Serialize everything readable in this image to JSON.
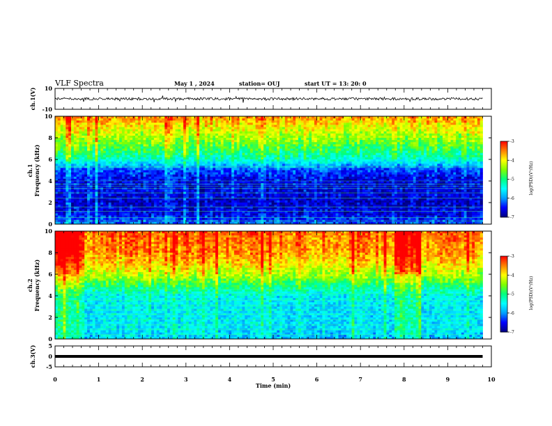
{
  "header": {
    "title": "VLF Spectra",
    "date": "May 1 , 2024",
    "station": "station= OUJ",
    "start": "start UT = 13: 20: 0"
  },
  "colors": {
    "scale": [
      "#000080",
      "#0000ff",
      "#00a0ff",
      "#00ffff",
      "#00ff80",
      "#80ff00",
      "#ffff00",
      "#ff8000",
      "#ff0000",
      "#ffffff"
    ]
  },
  "chart_data": [
    {
      "id": "ch1-waveform",
      "type": "line",
      "ylabel": "ch.1(V)",
      "ylim": [
        -10,
        10
      ],
      "yticks": [
        "10",
        "-10"
      ],
      "baseline": 0,
      "noise_amplitude": 1.2
    },
    {
      "id": "ch1-spectrogram",
      "type": "heatmap",
      "ylabel_top": "ch.1",
      "ylabel": "Frequency (kHz)",
      "ylim": [
        0,
        10
      ],
      "yticks": [
        "0",
        "2",
        "4",
        "6",
        "8",
        "10"
      ],
      "colorbar": {
        "label": "log(PSD)(V²/Hz)",
        "range": [
          -7,
          -3
        ],
        "ticks": [
          "-3",
          "-4",
          "-5",
          "-6",
          "-7"
        ]
      },
      "profile": [
        {
          "f": 0,
          "v": -6.2
        },
        {
          "f": 1,
          "v": -6.6
        },
        {
          "f": 2,
          "v": -6.7
        },
        {
          "f": 3,
          "v": -6.6
        },
        {
          "f": 4,
          "v": -6.6
        },
        {
          "f": 5,
          "v": -6.3
        },
        {
          "f": 6,
          "v": -5.3
        },
        {
          "f": 7,
          "v": -4.8
        },
        {
          "f": 8,
          "v": -4.4
        },
        {
          "f": 9,
          "v": -4.0
        },
        {
          "f": 10,
          "v": -3.6
        }
      ],
      "narrowband_khz": [
        0.3,
        0.6,
        1.2,
        1.6,
        2.4,
        2.9,
        3.3,
        3.5,
        3.7,
        4.0,
        5.3
      ]
    },
    {
      "id": "ch2-spectrogram",
      "type": "heatmap",
      "ylabel_top": "ch.2",
      "ylabel": "Frequency (kHz)",
      "ylim": [
        0,
        10
      ],
      "yticks": [
        "0",
        "2",
        "4",
        "6",
        "8",
        "10"
      ],
      "colorbar": {
        "label": "log(PSD)(V²/Hz)",
        "range": [
          -7,
          -3
        ],
        "ticks": [
          "-3",
          "-4",
          "-5",
          "-6",
          "-7"
        ]
      },
      "profile": [
        {
          "f": 0,
          "v": -5.8
        },
        {
          "f": 1,
          "v": -5.6
        },
        {
          "f": 2,
          "v": -5.6
        },
        {
          "f": 3,
          "v": -5.6
        },
        {
          "f": 4,
          "v": -5.5
        },
        {
          "f": 5,
          "v": -4.9
        },
        {
          "f": 6,
          "v": -4.3
        },
        {
          "f": 7,
          "v": -3.9
        },
        {
          "f": 8,
          "v": -3.6
        },
        {
          "f": 9,
          "v": -3.5
        },
        {
          "f": 10,
          "v": -3.4
        }
      ],
      "bright_intervals_min": [
        [
          0,
          0.7
        ],
        [
          7.8,
          8.4
        ]
      ],
      "narrowband_khz": [
        0.4,
        0.9,
        1.3,
        1.8,
        2.3,
        2.7,
        3.1,
        3.6,
        4.2,
        4.6
      ]
    },
    {
      "id": "ch3-waveform",
      "type": "line",
      "ylabel": "ch.3(V)",
      "ylim": [
        -5,
        5
      ],
      "yticks": [
        "5",
        "0",
        "-5"
      ],
      "baseline": 0
    }
  ],
  "xaxis": {
    "label": "Time (min)",
    "range": [
      0,
      10
    ],
    "ticks": [
      "0",
      "1",
      "2",
      "3",
      "4",
      "5",
      "6",
      "7",
      "8",
      "9",
      "10"
    ],
    "data_end_min": 9.8
  }
}
